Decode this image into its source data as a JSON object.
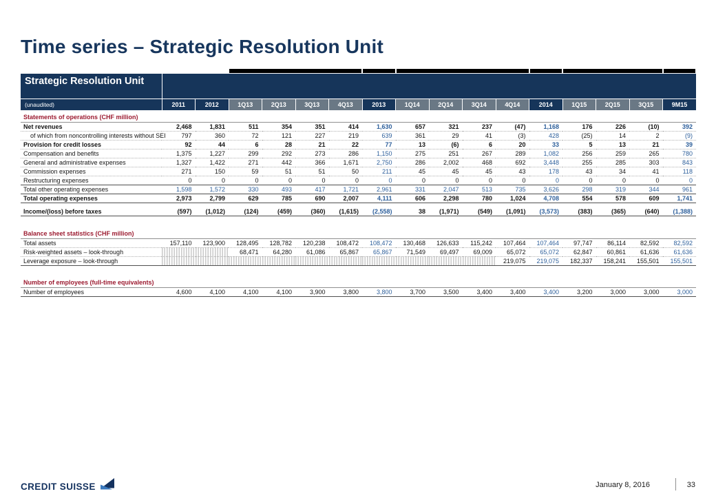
{
  "slide": {
    "title": "Time series – Strategic Resolution Unit"
  },
  "table": {
    "title": "Strategic Resolution Unit",
    "subtitle": "(unaudited)",
    "colors": {
      "header_dark": "#16355a",
      "header_quarter": "#6a7885",
      "annual_value_blue": "#2d5f9b",
      "section_heading_red": "#9c1b30"
    },
    "columns": [
      {
        "label": "2011",
        "dark": true,
        "blue": false
      },
      {
        "label": "2012",
        "dark": true,
        "blue": false
      },
      {
        "label": "1Q13",
        "dark": false,
        "blue": false
      },
      {
        "label": "2Q13",
        "dark": false,
        "blue": false
      },
      {
        "label": "3Q13",
        "dark": false,
        "blue": false
      },
      {
        "label": "4Q13",
        "dark": false,
        "blue": false
      },
      {
        "label": "2013",
        "dark": true,
        "blue": true
      },
      {
        "label": "1Q14",
        "dark": false,
        "blue": false
      },
      {
        "label": "2Q14",
        "dark": false,
        "blue": false
      },
      {
        "label": "3Q14",
        "dark": false,
        "blue": false
      },
      {
        "label": "4Q14",
        "dark": false,
        "blue": false
      },
      {
        "label": "2014",
        "dark": true,
        "blue": true
      },
      {
        "label": "1Q15",
        "dark": false,
        "blue": false
      },
      {
        "label": "2Q15",
        "dark": false,
        "blue": false
      },
      {
        "label": "3Q15",
        "dark": false,
        "blue": false
      },
      {
        "label": "9M15",
        "dark": true,
        "blue": true
      }
    ],
    "sections": [
      {
        "heading": "Statements of operations (CHF million)",
        "rows": [
          {
            "label": "Net revenues",
            "classes": "bold",
            "values": [
              "2,468",
              "1,831",
              "511",
              "354",
              "351",
              "414",
              "1,630",
              "657",
              "321",
              "237",
              "(47)",
              "1,168",
              "176",
              "226",
              "(10)",
              "392"
            ]
          },
          {
            "label": "of which from noncontrolling interests without SEI",
            "classes": "indent",
            "values": [
              "797",
              "360",
              "72",
              "121",
              "227",
              "219",
              "639",
              "361",
              "29",
              "41",
              "(3)",
              "428",
              "(25)",
              "14",
              "2",
              "(9)"
            ]
          },
          {
            "label": "Provision for credit losses",
            "classes": "bold",
            "values": [
              "92",
              "44",
              "6",
              "28",
              "21",
              "22",
              "77",
              "13",
              "(6)",
              "6",
              "20",
              "33",
              "5",
              "13",
              "21",
              "39"
            ]
          },
          {
            "label": "Compensation and benefits",
            "classes": "",
            "values": [
              "1,375",
              "1,227",
              "299",
              "292",
              "273",
              "286",
              "1,150",
              "275",
              "251",
              "267",
              "289",
              "1,082",
              "256",
              "259",
              "265",
              "780"
            ]
          },
          {
            "label": "General and administrative expenses",
            "classes": "",
            "values": [
              "1,327",
              "1,422",
              "271",
              "442",
              "366",
              "1,671",
              "2,750",
              "286",
              "2,002",
              "468",
              "692",
              "3,448",
              "255",
              "285",
              "303",
              "843"
            ]
          },
          {
            "label": "Commission expenses",
            "classes": "",
            "values": [
              "271",
              "150",
              "59",
              "51",
              "51",
              "50",
              "211",
              "45",
              "45",
              "45",
              "43",
              "178",
              "43",
              "34",
              "41",
              "118"
            ]
          },
          {
            "label": "Restructuring expenses",
            "classes": "",
            "values": [
              "0",
              "0",
              "0",
              "0",
              "0",
              "0",
              "0",
              "0",
              "0",
              "0",
              "0",
              "0",
              "0",
              "0",
              "0",
              "0"
            ]
          },
          {
            "label": "Total other operating expenses",
            "classes": "blue-row top-solid",
            "values": [
              "1,598",
              "1,572",
              "330",
              "493",
              "417",
              "1,721",
              "2,961",
              "331",
              "2,047",
              "513",
              "735",
              "3,626",
              "298",
              "319",
              "344",
              "961"
            ]
          },
          {
            "label": "Total operating expenses",
            "classes": "bold top-solid bottom-solid",
            "values": [
              "2,973",
              "2,799",
              "629",
              "785",
              "690",
              "2,007",
              "4,111",
              "606",
              "2,298",
              "780",
              "1,024",
              "4,708",
              "554",
              "578",
              "609",
              "1,741"
            ]
          },
          {
            "label": "Income/(loss) before taxes",
            "classes": "bold bottom-solid",
            "spacer_before": true,
            "values": [
              "(597)",
              "(1,012)",
              "(124)",
              "(459)",
              "(360)",
              "(1,615)",
              "(2,558)",
              "38",
              "(1,971)",
              "(549)",
              "(1,091)",
              "(3,573)",
              "(383)",
              "(365)",
              "(640)",
              "(1,388)"
            ]
          }
        ]
      },
      {
        "heading": "Balance sheet statistics (CHF million)",
        "rows": [
          {
            "label": "Total assets",
            "classes": "",
            "values": [
              "157,110",
              "123,900",
              "128,495",
              "128,782",
              "120,238",
              "108,472",
              "108,472",
              "130,468",
              "126,633",
              "115,242",
              "107,464",
              "107,464",
              "97,747",
              "86,114",
              "82,592",
              "82,592"
            ]
          },
          {
            "label": "Risk-weighted assets – look-through",
            "classes": "",
            "hatch": 2,
            "values": [
              "",
              "",
              "68,471",
              "64,280",
              "61,086",
              "65,867",
              "65,867",
              "71,549",
              "69,497",
              "69,009",
              "65,072",
              "65,072",
              "62,847",
              "60,861",
              "61,636",
              "61,636"
            ]
          },
          {
            "label": "Leverage exposure – look-through",
            "classes": "bottom-solid",
            "hatch": 10,
            "values": [
              "",
              "",
              "",
              "",
              "",
              "",
              "",
              "",
              "",
              "",
              "219,075",
              "219,075",
              "182,337",
              "158,241",
              "155,501",
              "155,501"
            ]
          }
        ]
      },
      {
        "heading": "Number of employees (full-time equivalents)",
        "rows": [
          {
            "label": "Number of employees",
            "classes": "bottom-solid",
            "values": [
              "4,600",
              "4,100",
              "4,100",
              "4,100",
              "3,900",
              "3,800",
              "3,800",
              "3,700",
              "3,500",
              "3,400",
              "3,400",
              "3,400",
              "3,200",
              "3,000",
              "3,000",
              "3,000"
            ]
          }
        ]
      }
    ]
  },
  "footer": {
    "brand": "CREDIT SUISSE",
    "date": "January 8, 2016",
    "page": "33"
  }
}
